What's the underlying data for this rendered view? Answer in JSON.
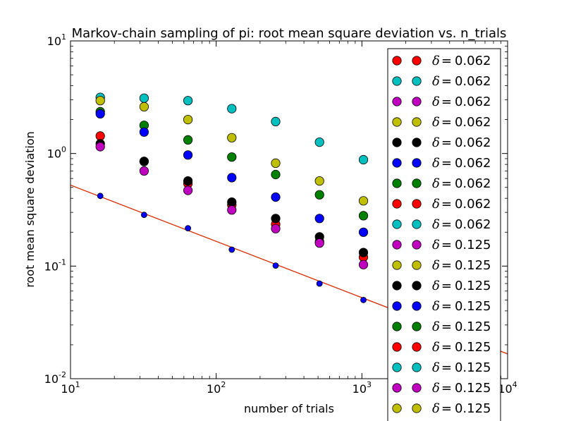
{
  "chart_data": {
    "type": "scatter",
    "title": "Markov-chain sampling of pi: root mean square deviation vs. n_trials",
    "xlabel": "number of trials",
    "ylabel": "root mean square deviation",
    "xscale": "log",
    "yscale": "log",
    "xlim": [
      10,
      10000
    ],
    "ylim": [
      0.01,
      10
    ],
    "x_ticks": [
      {
        "base": "10",
        "exp": "1"
      },
      {
        "base": "10",
        "exp": "2"
      },
      {
        "base": "10",
        "exp": "3"
      },
      {
        "base": "10",
        "exp": "4"
      }
    ],
    "y_ticks": [
      {
        "base": "10",
        "exp": "-2"
      },
      {
        "base": "10",
        "exp": "-1"
      },
      {
        "base": "10",
        "exp": "0"
      },
      {
        "base": "10",
        "exp": "1"
      }
    ],
    "grid": false,
    "legend_position": "right",
    "legend_entries": [
      {
        "symbol": "δ",
        "eq": "=",
        "value": "0.062",
        "color": "#ff0000"
      },
      {
        "symbol": "δ",
        "eq": "=",
        "value": "0.062",
        "color": "#00bfbf"
      },
      {
        "symbol": "δ",
        "eq": "=",
        "value": "0.062",
        "color": "#bf00bf"
      },
      {
        "symbol": "δ",
        "eq": "=",
        "value": "0.062",
        "color": "#bfbf00"
      },
      {
        "symbol": "δ",
        "eq": "=",
        "value": "0.062",
        "color": "#000000"
      },
      {
        "symbol": "δ",
        "eq": "=",
        "value": "0.062",
        "color": "#0000ff"
      },
      {
        "symbol": "δ",
        "eq": "=",
        "value": "0.062",
        "color": "#008000"
      },
      {
        "symbol": "δ",
        "eq": "=",
        "value": "0.062",
        "color": "#ff0000"
      },
      {
        "symbol": "δ",
        "eq": "=",
        "value": "0.062",
        "color": "#00bfbf"
      },
      {
        "symbol": "δ",
        "eq": "=",
        "value": "0.125",
        "color": "#bf00bf"
      },
      {
        "symbol": "δ",
        "eq": "=",
        "value": "0.125",
        "color": "#bfbf00"
      },
      {
        "symbol": "δ",
        "eq": "=",
        "value": "0.125",
        "color": "#000000"
      },
      {
        "symbol": "δ",
        "eq": "=",
        "value": "0.125",
        "color": "#0000ff"
      },
      {
        "symbol": "δ",
        "eq": "=",
        "value": "0.125",
        "color": "#008000"
      },
      {
        "symbol": "δ",
        "eq": "=",
        "value": "0.125",
        "color": "#ff0000"
      },
      {
        "symbol": "δ",
        "eq": "=",
        "value": "0.125",
        "color": "#00bfbf"
      },
      {
        "symbol": "δ",
        "eq": "=",
        "value": "0.125",
        "color": "#bf00bf"
      },
      {
        "symbol": "δ",
        "eq": "=",
        "value": "0.125",
        "color": "#bfbf00"
      }
    ],
    "series": [
      {
        "color": "#00bfbf",
        "x": [
          16,
          32,
          64,
          128,
          256,
          512,
          1024
        ],
        "y": [
          3.15,
          3.1,
          2.95,
          2.5,
          1.92,
          1.26,
          0.88
        ]
      },
      {
        "color": "#bfbf00",
        "x": [
          16,
          32,
          64,
          128,
          256,
          512,
          1024
        ],
        "y": [
          2.95,
          2.6,
          2.0,
          1.38,
          0.82,
          0.57,
          0.38
        ]
      },
      {
        "color": "#008000",
        "x": [
          16,
          32,
          64,
          128,
          256,
          512,
          1024
        ],
        "y": [
          2.35,
          1.78,
          1.32,
          0.93,
          0.65,
          0.43,
          0.28
        ]
      },
      {
        "color": "#0000ff",
        "x": [
          16,
          32,
          64,
          128,
          256,
          512,
          1024
        ],
        "y": [
          2.25,
          1.55,
          0.97,
          0.61,
          0.41,
          0.265,
          0.2
        ]
      },
      {
        "color": "#ff0000",
        "x": [
          16,
          32,
          64,
          128,
          256,
          512,
          1024
        ],
        "y": [
          1.43,
          0.85,
          0.54,
          0.35,
          0.235,
          0.165,
          0.12
        ]
      },
      {
        "color": "#000000",
        "x": [
          16,
          32,
          64,
          128,
          256,
          512,
          1024
        ],
        "y": [
          1.22,
          0.85,
          0.57,
          0.37,
          0.265,
          0.182,
          0.132
        ]
      },
      {
        "color": "#bf00bf",
        "x": [
          16,
          32,
          64,
          128,
          256,
          512,
          1024
        ],
        "y": [
          1.15,
          0.7,
          0.47,
          0.315,
          0.215,
          0.16,
          0.103
        ]
      },
      {
        "color": "#0000ff",
        "small": true,
        "x": [
          16,
          32,
          64,
          128,
          256,
          512,
          1024
        ],
        "y": [
          0.42,
          0.285,
          0.217,
          0.14,
          0.101,
          0.07,
          0.05
        ]
      }
    ],
    "fit_line": {
      "color": "#d62a00",
      "x": [
        10,
        10000
      ],
      "y": [
        0.524,
        0.0166
      ]
    }
  }
}
